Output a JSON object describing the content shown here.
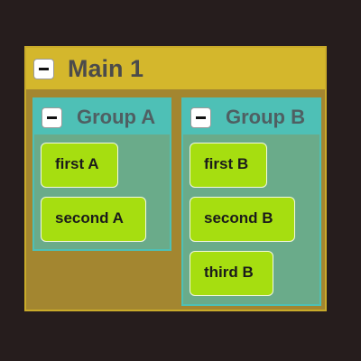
{
  "main": {
    "title": "Main 1",
    "collapse_symbol": "minus-icon"
  },
  "groups": [
    {
      "title": "Group A",
      "items": [
        "first A",
        "second A"
      ]
    },
    {
      "title": "Group B",
      "items": [
        "first B",
        "second B",
        "third B"
      ]
    }
  ],
  "colors": {
    "background": "#261d1d",
    "main_header": "#d4b72c",
    "main_body": "#a38630",
    "group_header": "#4ec0b6",
    "group_body": "#6aab8a",
    "item": "#a6de10"
  }
}
